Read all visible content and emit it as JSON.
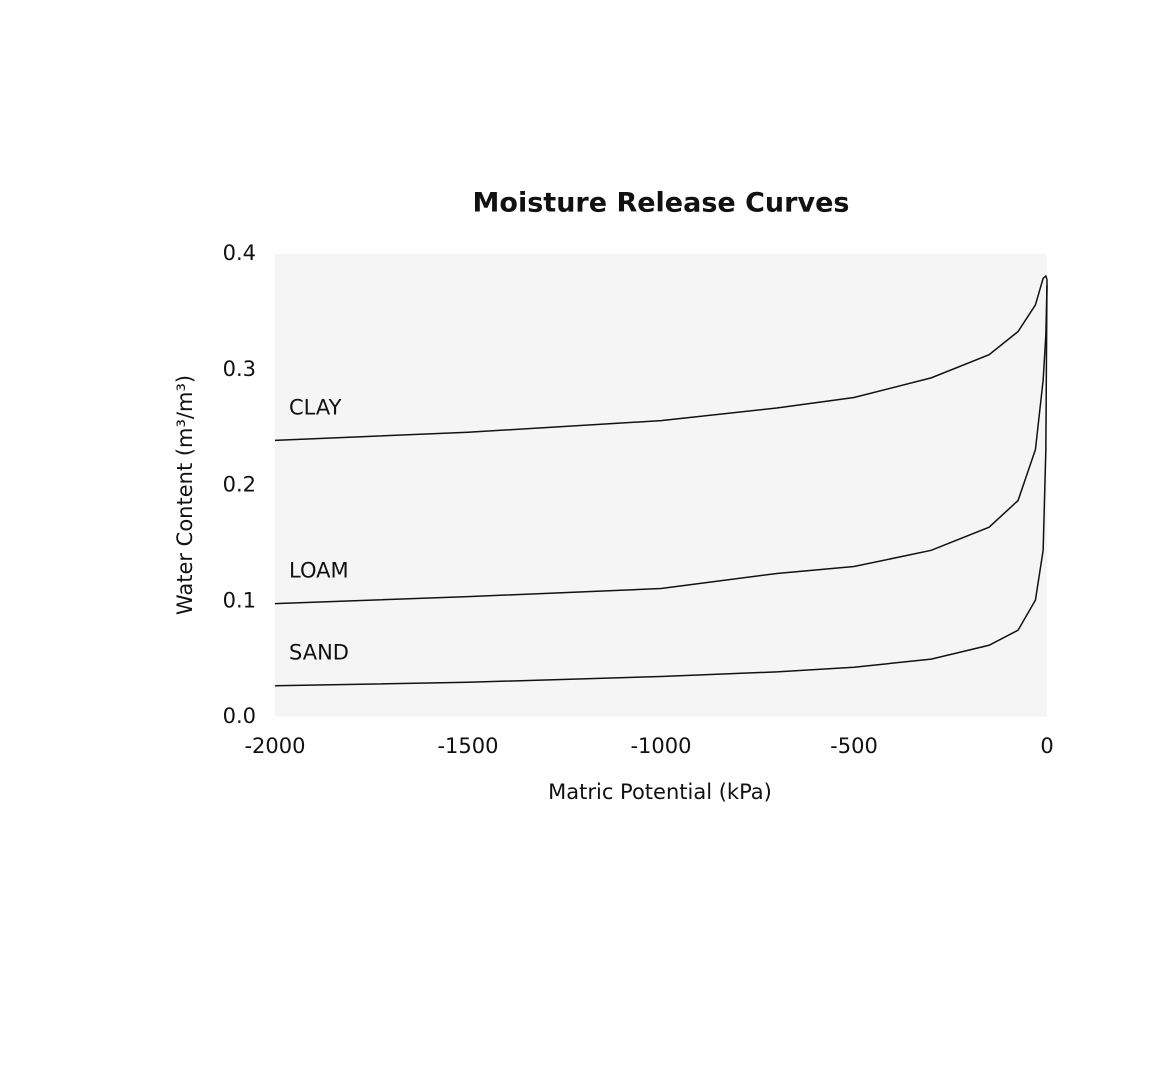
{
  "chart_data": {
    "type": "line",
    "title": "Moisture Release Curves",
    "x_label": "Matric Potential (kPa)",
    "y_label": "Water Content (m³/m³)",
    "x": [
      -2000,
      -1500,
      -1000,
      -700,
      -500,
      -300,
      -150,
      -75,
      -30,
      -10,
      -3,
      0
    ],
    "series": [
      {
        "name": "CLAY",
        "color": "#111111",
        "values": [
          0.239,
          0.246,
          0.256,
          0.267,
          0.276,
          0.293,
          0.313,
          0.333,
          0.356,
          0.379,
          0.381,
          0.378
        ]
      },
      {
        "name": "LOAM",
        "color": "#111111",
        "values": [
          0.098,
          0.104,
          0.111,
          0.124,
          0.13,
          0.144,
          0.164,
          0.187,
          0.231,
          0.291,
          0.33,
          0.373
        ]
      },
      {
        "name": "SAND",
        "color": "#111111",
        "values": [
          0.027,
          0.03,
          0.035,
          0.039,
          0.043,
          0.05,
          0.062,
          0.075,
          0.101,
          0.144,
          0.231,
          0.378
        ]
      }
    ],
    "xlim": [
      -2000,
      0
    ],
    "ylim": [
      0,
      0.4
    ],
    "xticks": [
      -2000,
      -1500,
      -1000,
      -500,
      0
    ],
    "yticks": [
      {
        "value": 0,
        "label": "0.0"
      },
      0.1,
      0.2,
      0.3,
      0.4
    ],
    "plot_background": "#f5f5f5"
  }
}
